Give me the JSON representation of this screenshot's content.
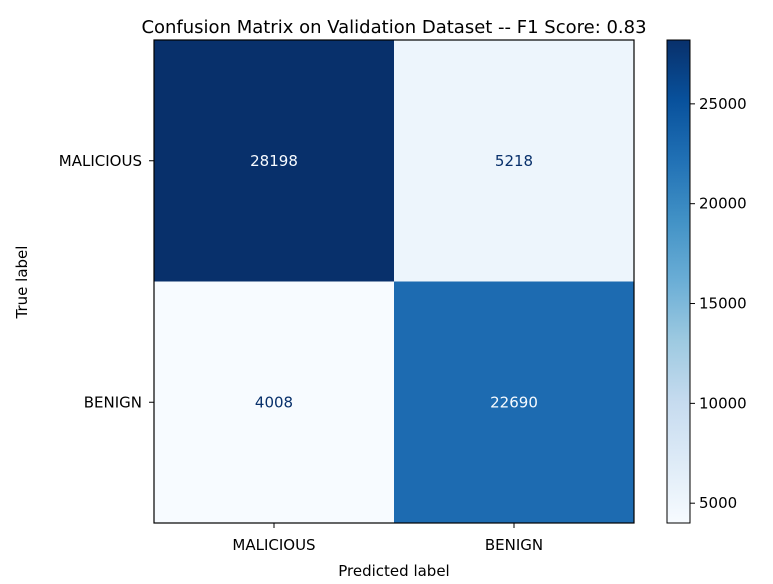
{
  "chart_data": {
    "type": "heatmap",
    "title": "Confusion Matrix on Validation Dataset -- F1 Score: 0.83",
    "xlabel": "Predicted label",
    "ylabel": "True label",
    "x_categories": [
      "MALICIOUS",
      "BENIGN"
    ],
    "y_categories": [
      "MALICIOUS",
      "BENIGN"
    ],
    "values": [
      [
        28198,
        5218
      ],
      [
        4008,
        22690
      ]
    ],
    "colormap": "Blues",
    "colorbar": {
      "min": 4008,
      "max": 28198,
      "ticks": [
        5000,
        10000,
        15000,
        20000,
        25000
      ],
      "tick_labels": [
        "5000",
        "10000",
        "15000",
        "20000",
        "25000"
      ]
    },
    "colors": {
      "low": "#f7fbff",
      "high": "#08306b",
      "text_on_dark": "#f7fbff",
      "text_on_light": "#08306b"
    }
  }
}
